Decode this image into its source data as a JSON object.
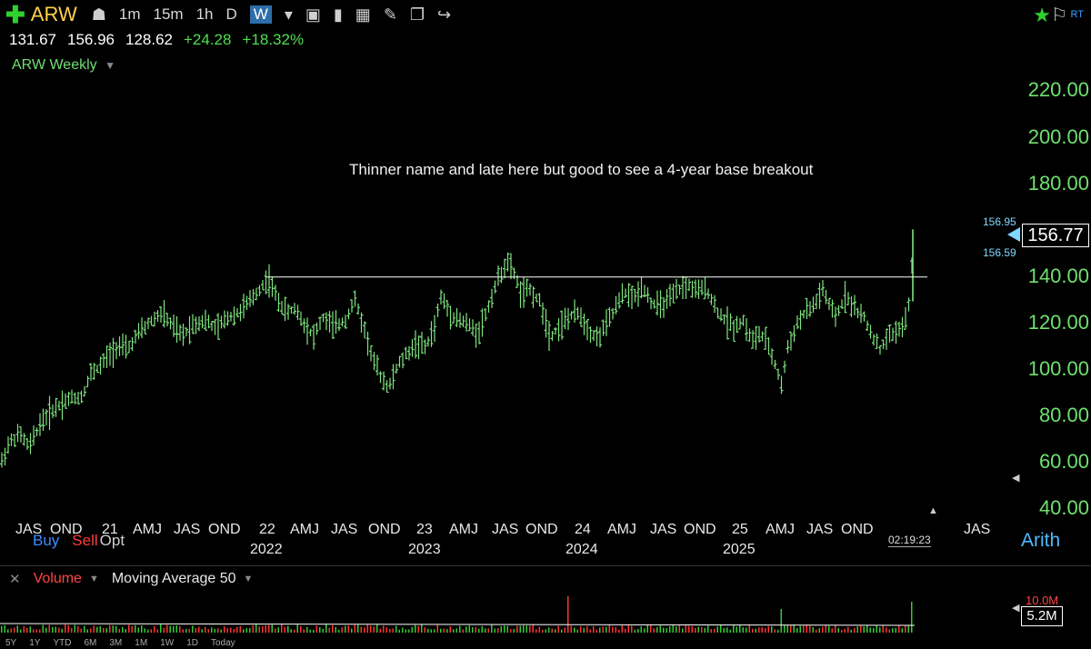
{
  "toolbar": {
    "symbol": "ARW",
    "timeframes": [
      "1m",
      "15m",
      "1h",
      "D"
    ],
    "active_timeframe": "W",
    "rt_label": "RT"
  },
  "quote": {
    "open": "131.67",
    "high": "156.96",
    "low": "128.62",
    "change": "+24.28",
    "change_pct": "+18.32%"
  },
  "chart_title": "ARW Weekly",
  "annotation": "Thinner name and late here but good to see a 4-year base breakout",
  "price_tag": {
    "current": "156.77",
    "upper": "156.95",
    "lower": "156.59"
  },
  "order_buttons": {
    "buy": "Buy",
    "sell": "Sell",
    "opt": "Opt"
  },
  "clock": "02:19:23",
  "scale_mode": "Arith",
  "volume_panel": {
    "volume_label": "Volume",
    "ma_label": "Moving Average 50",
    "max_label": "10.0M",
    "current_label": "5.2M"
  },
  "range_buttons": [
    "5Y",
    "1Y",
    "YTD",
    "6M",
    "3M",
    "1M",
    "1W",
    "1D",
    "Today"
  ],
  "colors": {
    "bars": "#7fe57f",
    "axis_text": "#6fe06f",
    "volume_up": "#33cc33",
    "volume_down": "#ff3333"
  },
  "chart_data": {
    "type": "ohlc",
    "title": "ARW Weekly",
    "ylim": [
      40,
      220
    ],
    "yticks": [
      "220.00",
      "200.00",
      "180.00",
      "140.00",
      "120.00",
      "100.00",
      "80.00",
      "60.00",
      "40.00"
    ],
    "x_month_labels": [
      "JAS",
      "OND",
      "21",
      "AMJ",
      "JAS",
      "OND",
      "22",
      "AMJ",
      "JAS",
      "OND",
      "23",
      "AMJ",
      "JAS",
      "OND",
      "24",
      "AMJ",
      "JAS",
      "OND",
      "25",
      "AMJ",
      "JAS",
      "OND",
      "JAS"
    ],
    "x_year_labels": [
      "2022",
      "2023",
      "2024",
      "2025"
    ],
    "resistance_level": 139.5,
    "price_path": [
      [
        0,
        58
      ],
      [
        10,
        68
      ],
      [
        22,
        72
      ],
      [
        32,
        66
      ],
      [
        45,
        77
      ],
      [
        60,
        83
      ],
      [
        75,
        87
      ],
      [
        90,
        88
      ],
      [
        100,
        98
      ],
      [
        110,
        101
      ],
      [
        120,
        106
      ],
      [
        130,
        110
      ],
      [
        140,
        108
      ],
      [
        152,
        115
      ],
      [
        165,
        120
      ],
      [
        178,
        124
      ],
      [
        190,
        118
      ],
      [
        200,
        114
      ],
      [
        212,
        119
      ],
      [
        225,
        121
      ],
      [
        238,
        117
      ],
      [
        250,
        122
      ],
      [
        262,
        124
      ],
      [
        275,
        129
      ],
      [
        285,
        134
      ],
      [
        295,
        139
      ],
      [
        305,
        130
      ],
      [
        315,
        124
      ],
      [
        325,
        126
      ],
      [
        335,
        119
      ],
      [
        345,
        114
      ],
      [
        355,
        122
      ],
      [
        368,
        118
      ],
      [
        380,
        121
      ],
      [
        390,
        130
      ],
      [
        400,
        118
      ],
      [
        410,
        104
      ],
      [
        420,
        96
      ],
      [
        428,
        92
      ],
      [
        437,
        101
      ],
      [
        447,
        106
      ],
      [
        458,
        111
      ],
      [
        468,
        109
      ],
      [
        478,
        118
      ],
      [
        485,
        131
      ],
      [
        495,
        124
      ],
      [
        505,
        121
      ],
      [
        515,
        119
      ],
      [
        525,
        115
      ],
      [
        535,
        124
      ],
      [
        545,
        136
      ],
      [
        557,
        146
      ],
      [
        566,
        141
      ],
      [
        573,
        132
      ],
      [
        583,
        134
      ],
      [
        595,
        128
      ],
      [
        605,
        114
      ],
      [
        615,
        118
      ],
      [
        625,
        122
      ],
      [
        637,
        124
      ],
      [
        647,
        117
      ],
      [
        657,
        113
      ],
      [
        667,
        119
      ],
      [
        677,
        126
      ],
      [
        687,
        133
      ],
      [
        697,
        130
      ],
      [
        707,
        136
      ],
      [
        717,
        128
      ],
      [
        727,
        127
      ],
      [
        737,
        130
      ],
      [
        747,
        134
      ],
      [
        757,
        136
      ],
      [
        767,
        133
      ],
      [
        777,
        135
      ],
      [
        787,
        126
      ],
      [
        797,
        121
      ],
      [
        807,
        118
      ],
      [
        817,
        121
      ],
      [
        827,
        112
      ],
      [
        837,
        115
      ],
      [
        847,
        108
      ],
      [
        855,
        99
      ],
      [
        860,
        92
      ],
      [
        865,
        107
      ],
      [
        875,
        118
      ],
      [
        885,
        124
      ],
      [
        895,
        127
      ],
      [
        905,
        134
      ],
      [
        913,
        126
      ],
      [
        920,
        122
      ],
      [
        930,
        132
      ],
      [
        940,
        126
      ],
      [
        950,
        122
      ],
      [
        960,
        114
      ],
      [
        968,
        108
      ],
      [
        975,
        113
      ],
      [
        985,
        116
      ],
      [
        995,
        119
      ],
      [
        1000,
        128
      ],
      [
        1004,
        150
      ]
    ],
    "volume_spikes": {
      "625": 1.0,
      "860": 0.65,
      "1004": 0.85
    }
  }
}
